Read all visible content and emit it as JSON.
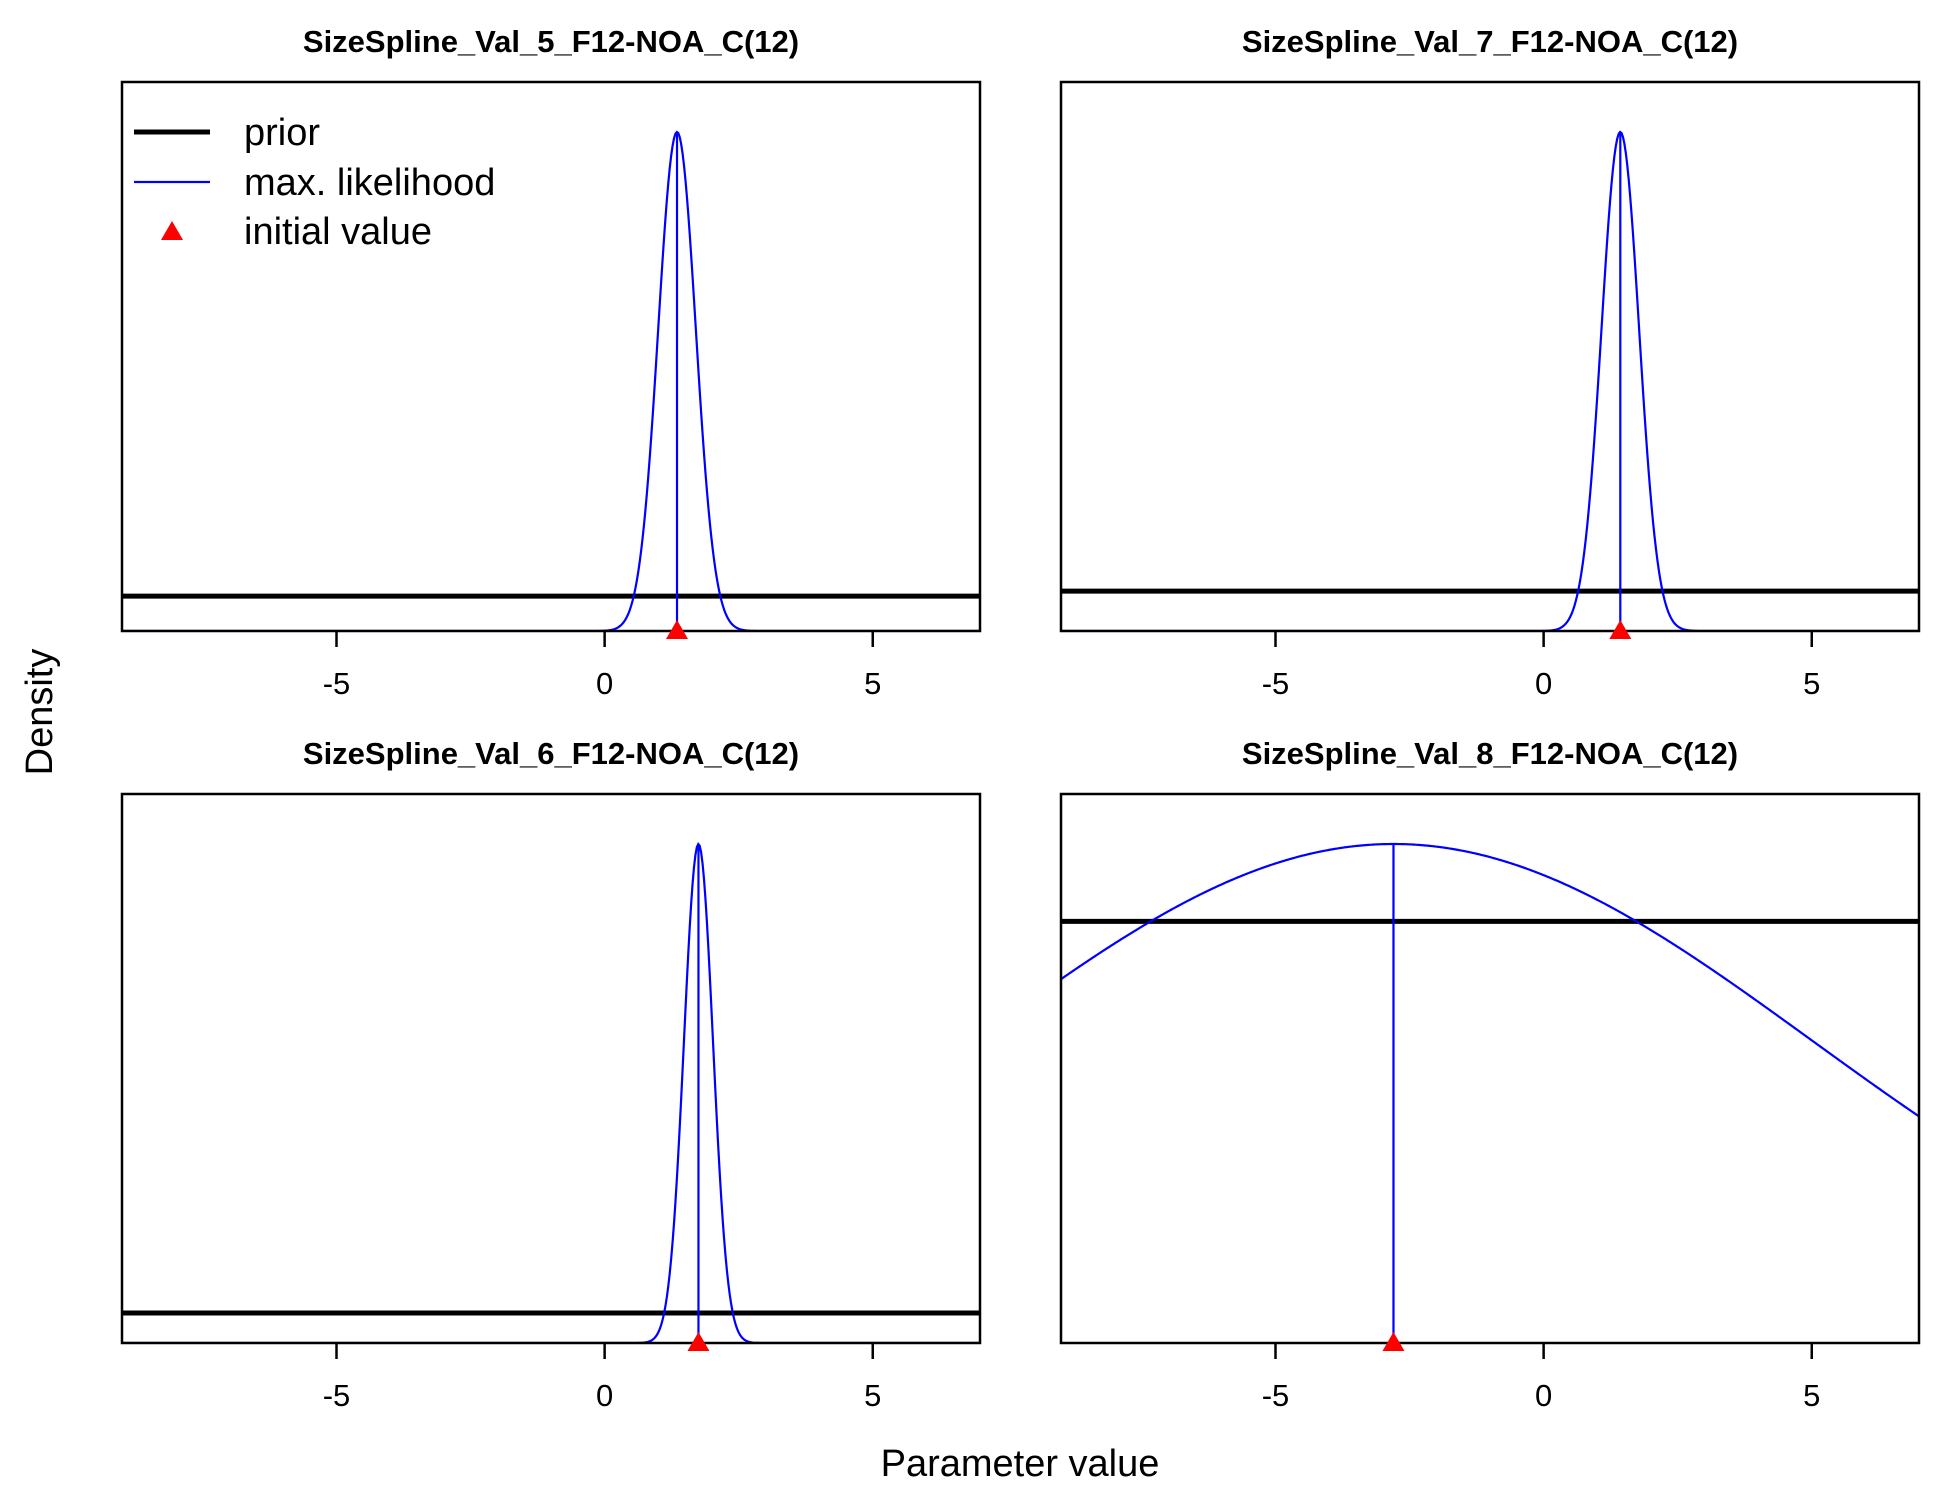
{
  "figure": {
    "ylabel": "Density",
    "xlabel": "Parameter value"
  },
  "legend": {
    "placement": "top-left of first panel",
    "items": [
      {
        "key": "prior",
        "label": "prior",
        "color": "#000000"
      },
      {
        "key": "mle",
        "label": "max. likelihood",
        "color": "#0000ff"
      },
      {
        "key": "initial",
        "label": "initial value",
        "color": "#ff0000"
      }
    ]
  },
  "chart_data": [
    {
      "type": "line",
      "title": "SizeSpline_Val_5_F12-NOA_C(12)",
      "xlim": [
        -9,
        7
      ],
      "xticks": [
        -5,
        0,
        5
      ],
      "xtick_labels": [
        "-5",
        "0",
        "5"
      ],
      "series": [
        {
          "name": "max. likelihood",
          "kind": "normal",
          "mean": 1.35,
          "sd": 0.35
        },
        {
          "name": "prior",
          "kind": "flat",
          "level": 0.07
        }
      ],
      "mle": 1.35,
      "initial_value": 1.35
    },
    {
      "type": "line",
      "title": "SizeSpline_Val_7_F12-NOA_C(12)",
      "xlim": [
        -9,
        7
      ],
      "xticks": [
        -5,
        0,
        5
      ],
      "xtick_labels": [
        "-5",
        "0",
        "5"
      ],
      "series": [
        {
          "name": "max. likelihood",
          "kind": "normal",
          "mean": 1.43,
          "sd": 0.35
        },
        {
          "name": "prior",
          "kind": "flat",
          "level": 0.08
        }
      ],
      "mle": 1.43,
      "initial_value": 1.43
    },
    {
      "type": "line",
      "title": "SizeSpline_Val_6_F12-NOA_C(12)",
      "xlim": [
        -9,
        7
      ],
      "xticks": [
        -5,
        0,
        5
      ],
      "xtick_labels": [
        "-5",
        "0",
        "5"
      ],
      "series": [
        {
          "name": "max. likelihood",
          "kind": "normal",
          "mean": 1.75,
          "sd": 0.27
        },
        {
          "name": "prior",
          "kind": "flat",
          "level": 0.06
        }
      ],
      "mle": 1.75,
      "initial_value": 1.75
    },
    {
      "type": "line",
      "title": "SizeSpline_Val_8_F12-NOA_C(12)",
      "xlim": [
        -9,
        7
      ],
      "xticks": [
        -5,
        0,
        5
      ],
      "xtick_labels": [
        "-5",
        "0",
        "5"
      ],
      "series": [
        {
          "name": "max. likelihood",
          "kind": "normal",
          "mean": -2.8,
          "sd": 7.8
        },
        {
          "name": "prior",
          "kind": "flat",
          "level": 0.845
        }
      ],
      "mle": -2.8,
      "initial_value": -2.8
    }
  ]
}
